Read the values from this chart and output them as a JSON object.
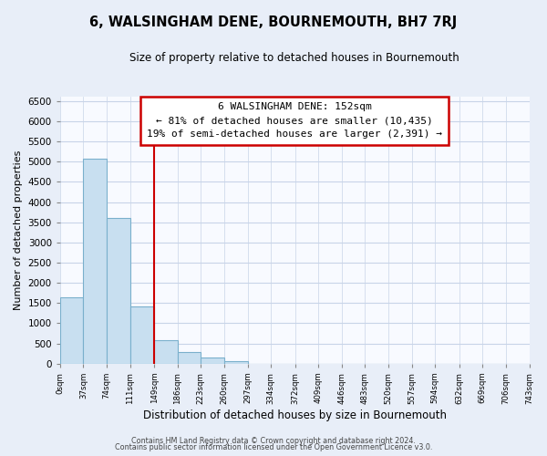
{
  "title": "6, WALSINGHAM DENE, BOURNEMOUTH, BH7 7RJ",
  "subtitle": "Size of property relative to detached houses in Bournemouth",
  "xlabel": "Distribution of detached houses by size in Bournemouth",
  "ylabel": "Number of detached properties",
  "bar_edges": [
    0,
    37,
    74,
    111,
    149,
    186,
    223,
    260,
    297,
    334,
    372,
    409,
    446,
    483,
    520,
    557,
    594,
    632,
    669,
    706,
    743
  ],
  "bar_heights": [
    1640,
    5080,
    3600,
    1420,
    580,
    295,
    145,
    50,
    0,
    0,
    0,
    0,
    0,
    0,
    0,
    0,
    0,
    0,
    0,
    0
  ],
  "tick_labels": [
    "0sqm",
    "37sqm",
    "74sqm",
    "111sqm",
    "149sqm",
    "186sqm",
    "223sqm",
    "260sqm",
    "297sqm",
    "334sqm",
    "372sqm",
    "409sqm",
    "446sqm",
    "483sqm",
    "520sqm",
    "557sqm",
    "594sqm",
    "632sqm",
    "669sqm",
    "706sqm",
    "743sqm"
  ],
  "bar_color": "#c8dff0",
  "bar_edge_color": "#7ab0cc",
  "vline_x": 149,
  "vline_color": "#cc0000",
  "ylim": [
    0,
    6600
  ],
  "yticks": [
    0,
    500,
    1000,
    1500,
    2000,
    2500,
    3000,
    3500,
    4000,
    4500,
    5000,
    5500,
    6000,
    6500
  ],
  "annotation_title": "6 WALSINGHAM DENE: 152sqm",
  "annotation_line1": "← 81% of detached houses are smaller (10,435)",
  "annotation_line2": "19% of semi-detached houses are larger (2,391) →",
  "footer1": "Contains HM Land Registry data © Crown copyright and database right 2024.",
  "footer2": "Contains public sector information licensed under the Open Government Licence v3.0.",
  "background_color": "#e8eef8",
  "plot_bg_color": "#f8faff",
  "grid_color": "#c8d4e8"
}
